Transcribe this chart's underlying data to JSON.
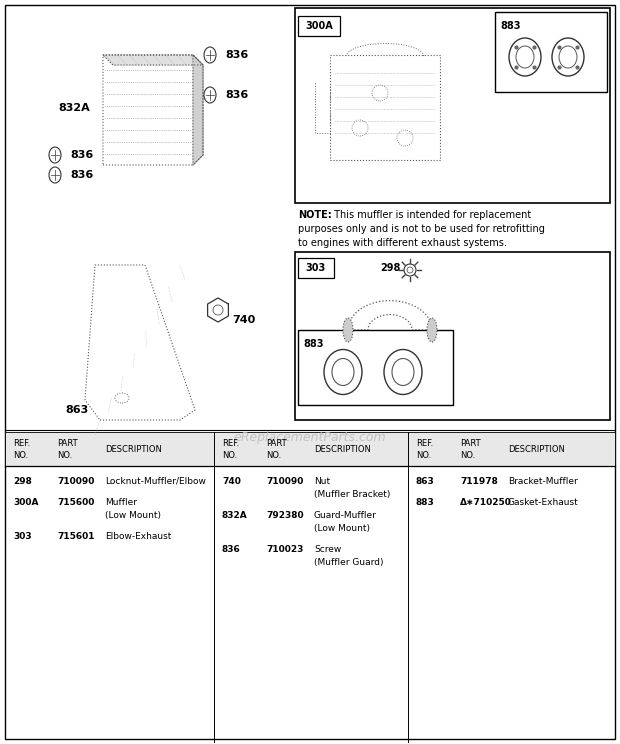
{
  "bg_color": "#ffffff",
  "watermark": "eReplacementParts.com",
  "note_text": "NOTE: This muffler is intended for replacement\npurposes only and is not to be used for retrofitting\nto engines with different exhaust systems.",
  "col1_data": [
    [
      "298",
      "710090",
      "Locknut-Muffler/Elbow"
    ],
    [
      "300A",
      "715600",
      "Muffler\n(Low Mount)"
    ],
    [
      "303",
      "715601",
      "Elbow-Exhaust"
    ]
  ],
  "col2_data": [
    [
      "740",
      "710090",
      "Nut\n(Muffler Bracket)"
    ],
    [
      "832A",
      "792380",
      "Guard-Muffler\n(Low Mount)"
    ],
    [
      "836",
      "710023",
      "Screw\n(Muffler Guard)"
    ]
  ],
  "col3_data": [
    [
      "863",
      "711978",
      "Bracket-Muffler"
    ],
    [
      "883",
      "Δ∗710250",
      "Gasket-Exhaust"
    ]
  ]
}
